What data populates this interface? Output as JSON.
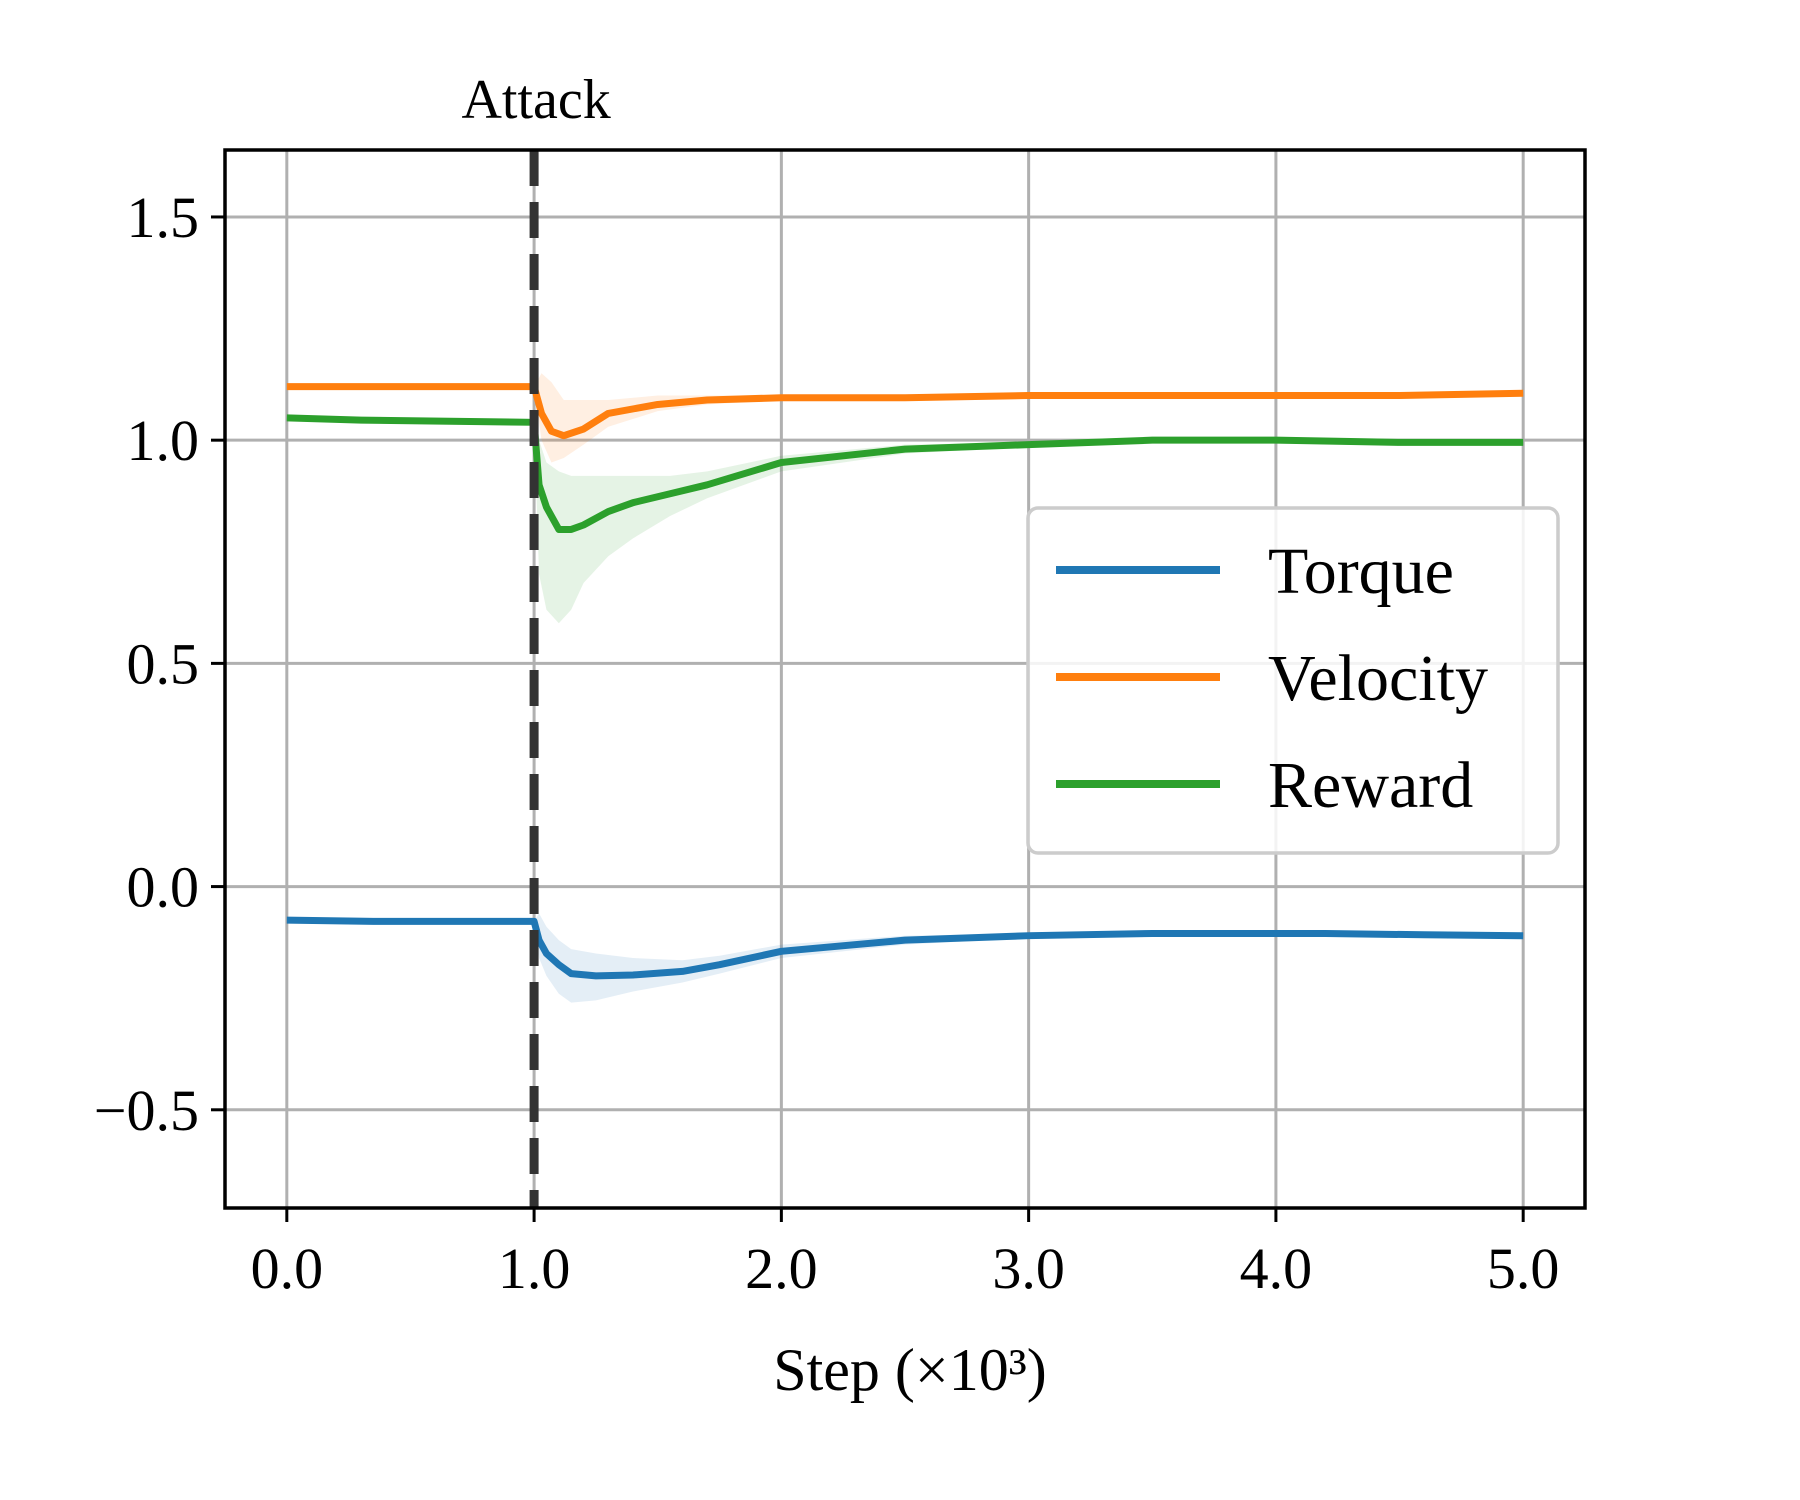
{
  "chart_data": {
    "type": "line",
    "title": "",
    "xlabel": "Step (×10³)",
    "ylabel": "",
    "xlim": [
      -0.25,
      5.25
    ],
    "ylim": [
      -0.72,
      1.65
    ],
    "grid": true,
    "legend_position": "center-right",
    "x_ticks": [
      0,
      1,
      2,
      3,
      4,
      5
    ],
    "x_tick_labels": [
      "0.0",
      "1.0",
      "2.0",
      "3.0",
      "4.0",
      "5.0"
    ],
    "y_ticks": [
      -0.5,
      0.0,
      0.5,
      1.0,
      1.5
    ],
    "y_tick_labels": [
      "−0.5",
      "0.0",
      "0.5",
      "1.0",
      "1.5"
    ],
    "annotation": {
      "label": "Attack",
      "x": 1.0,
      "style": "dashed vertical line"
    },
    "series": [
      {
        "name": "Torque",
        "color": "#1f77b4",
        "x": [
          0.0,
          0.35,
          1.0,
          1.02,
          1.05,
          1.1,
          1.15,
          1.25,
          1.4,
          1.6,
          1.75,
          2.0,
          2.5,
          3.0,
          3.5,
          3.8,
          4.2,
          4.6,
          5.0
        ],
        "y": [
          -0.075,
          -0.078,
          -0.078,
          -0.12,
          -0.15,
          -0.175,
          -0.195,
          -0.2,
          -0.198,
          -0.19,
          -0.175,
          -0.145,
          -0.12,
          -0.11,
          -0.105,
          -0.105,
          -0.105,
          -0.108,
          -0.11
        ],
        "lower": [
          -0.075,
          -0.078,
          -0.078,
          -0.16,
          -0.2,
          -0.24,
          -0.26,
          -0.255,
          -0.235,
          -0.215,
          -0.195,
          -0.16,
          -0.13,
          -0.115,
          -0.11,
          -0.108,
          -0.108,
          -0.11,
          -0.112
        ],
        "upper": [
          -0.075,
          -0.078,
          -0.078,
          -0.06,
          -0.09,
          -0.12,
          -0.14,
          -0.15,
          -0.16,
          -0.165,
          -0.155,
          -0.13,
          -0.11,
          -0.105,
          -0.1,
          -0.1,
          -0.102,
          -0.105,
          -0.108
        ]
      },
      {
        "name": "Velocity",
        "color": "#ff7f0e",
        "x": [
          0.0,
          1.0,
          1.03,
          1.07,
          1.12,
          1.2,
          1.3,
          1.5,
          1.7,
          2.0,
          2.5,
          3.0,
          3.5,
          4.0,
          4.5,
          5.0
        ],
        "y": [
          1.12,
          1.12,
          1.06,
          1.02,
          1.01,
          1.025,
          1.06,
          1.08,
          1.09,
          1.095,
          1.095,
          1.1,
          1.1,
          1.1,
          1.1,
          1.105
        ],
        "lower": [
          1.12,
          1.12,
          1.0,
          0.95,
          0.96,
          0.99,
          1.03,
          1.065,
          1.08,
          1.09,
          1.093,
          1.098,
          1.098,
          1.098,
          1.098,
          1.103
        ],
        "upper": [
          1.12,
          1.12,
          1.15,
          1.13,
          1.09,
          1.09,
          1.09,
          1.1,
          1.1,
          1.1,
          1.097,
          1.102,
          1.102,
          1.102,
          1.102,
          1.107
        ]
      },
      {
        "name": "Reward",
        "color": "#2ca02c",
        "x": [
          0.0,
          0.3,
          1.0,
          1.02,
          1.05,
          1.1,
          1.15,
          1.2,
          1.3,
          1.4,
          1.55,
          1.7,
          2.0,
          2.5,
          3.0,
          3.5,
          4.0,
          4.5,
          5.0
        ],
        "y": [
          1.05,
          1.045,
          1.04,
          0.9,
          0.85,
          0.8,
          0.8,
          0.81,
          0.84,
          0.86,
          0.88,
          0.9,
          0.95,
          0.98,
          0.99,
          1.0,
          1.0,
          0.995,
          0.995
        ],
        "lower": [
          1.05,
          1.045,
          1.04,
          0.7,
          0.62,
          0.59,
          0.62,
          0.68,
          0.74,
          0.78,
          0.83,
          0.87,
          0.93,
          0.97,
          0.985,
          0.995,
          0.995,
          0.99,
          0.99
        ],
        "upper": [
          1.05,
          1.045,
          1.04,
          1.0,
          0.95,
          0.93,
          0.92,
          0.92,
          0.92,
          0.92,
          0.92,
          0.93,
          0.965,
          0.99,
          0.995,
          1.005,
          1.005,
          1.0,
          1.0
        ]
      }
    ]
  }
}
